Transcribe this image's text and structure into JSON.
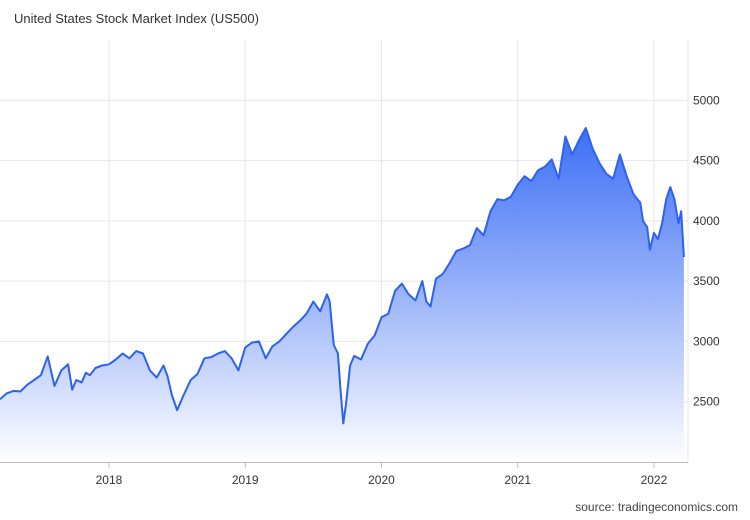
{
  "chart_data": {
    "type": "area",
    "title": "United States Stock Market Index (US500)",
    "source": "source: tradingeconomics.com",
    "xlabel": "",
    "ylabel": "",
    "xlim": [
      2017.2,
      2022.25
    ],
    "ylim": [
      2000,
      5500
    ],
    "x_ticks": [
      {
        "value": 2018.0,
        "label": "2018"
      },
      {
        "value": 2019.0,
        "label": "2019"
      },
      {
        "value": 2020.0,
        "label": "2020"
      },
      {
        "value": 2021.0,
        "label": "2021"
      },
      {
        "value": 2022.0,
        "label": "2022"
      }
    ],
    "y_ticks": [
      {
        "value": 2500,
        "label": "2500"
      },
      {
        "value": 3000,
        "label": "3000"
      },
      {
        "value": 3500,
        "label": "3500"
      },
      {
        "value": 4000,
        "label": "4000"
      },
      {
        "value": 4500,
        "label": "4500"
      },
      {
        "value": 5000,
        "label": "5000"
      }
    ],
    "grid": true,
    "line_color": "#2d62f0",
    "fill_top_color": "#3367f5",
    "fill_bottom_color": "#ffffff",
    "series": [
      {
        "x": [
          2017.2,
          2017.25,
          2017.3,
          2017.35,
          2017.4,
          2017.45,
          2017.5,
          2017.55,
          2017.6,
          2017.65,
          2017.7,
          2017.73,
          2017.76,
          2017.8,
          2017.83,
          2017.86,
          2017.9,
          2017.95,
          2018.0,
          2018.05,
          2018.1,
          2018.15,
          2018.2,
          2018.25,
          2018.3,
          2018.35,
          2018.4,
          2018.43,
          2018.46,
          2018.5,
          2018.55,
          2018.6,
          2018.65,
          2018.7,
          2018.75,
          2018.8,
          2018.85,
          2018.9,
          2018.95,
          2019.0,
          2019.05,
          2019.1,
          2019.15,
          2019.2,
          2019.25,
          2019.3,
          2019.35,
          2019.4,
          2019.45,
          2019.5,
          2019.55,
          2019.6,
          2019.62,
          2019.65,
          2019.68,
          2019.7,
          2019.72,
          2019.74,
          2019.77,
          2019.8,
          2019.85,
          2019.9,
          2019.95,
          2020.0,
          2020.05,
          2020.1,
          2020.15,
          2020.2,
          2020.25,
          2020.3,
          2020.33,
          2020.36,
          2020.4,
          2020.45,
          2020.5,
          2020.55,
          2020.6,
          2020.65,
          2020.7,
          2020.75,
          2020.8,
          2020.85,
          2020.9,
          2020.95,
          2021.0,
          2021.05,
          2021.1,
          2021.15,
          2021.2,
          2021.25,
          2021.3,
          2021.35,
          2021.4,
          2021.45,
          2021.5,
          2021.55,
          2021.6,
          2021.65,
          2021.7,
          2021.75,
          2021.8,
          2021.85,
          2021.9,
          2021.92,
          2021.95,
          2021.97,
          2022.0,
          2022.03,
          2022.06,
          2022.09,
          2022.12,
          2022.15,
          2022.18,
          2022.2,
          2022.22
        ],
        "y": [
          2520,
          2570,
          2590,
          2585,
          2640,
          2680,
          2720,
          2875,
          2630,
          2760,
          2810,
          2600,
          2680,
          2660,
          2740,
          2720,
          2780,
          2800,
          2810,
          2850,
          2900,
          2860,
          2920,
          2900,
          2760,
          2700,
          2800,
          2710,
          2560,
          2430,
          2560,
          2680,
          2730,
          2860,
          2870,
          2900,
          2920,
          2860,
          2760,
          2950,
          2990,
          3000,
          2860,
          2960,
          3000,
          3060,
          3120,
          3170,
          3230,
          3330,
          3250,
          3390,
          3330,
          2970,
          2900,
          2590,
          2320,
          2480,
          2800,
          2880,
          2850,
          2980,
          3050,
          3200,
          3230,
          3420,
          3480,
          3390,
          3340,
          3500,
          3330,
          3290,
          3520,
          3560,
          3650,
          3750,
          3770,
          3800,
          3940,
          3880,
          4080,
          4180,
          4170,
          4200,
          4300,
          4370,
          4330,
          4420,
          4450,
          4510,
          4350,
          4700,
          4550,
          4670,
          4770,
          4600,
          4480,
          4390,
          4350,
          4550,
          4370,
          4220,
          4150,
          4000,
          3950,
          3760,
          3900,
          3850,
          3980,
          4180,
          4280,
          4180,
          3980,
          4080,
          3700
        ]
      }
    ]
  }
}
